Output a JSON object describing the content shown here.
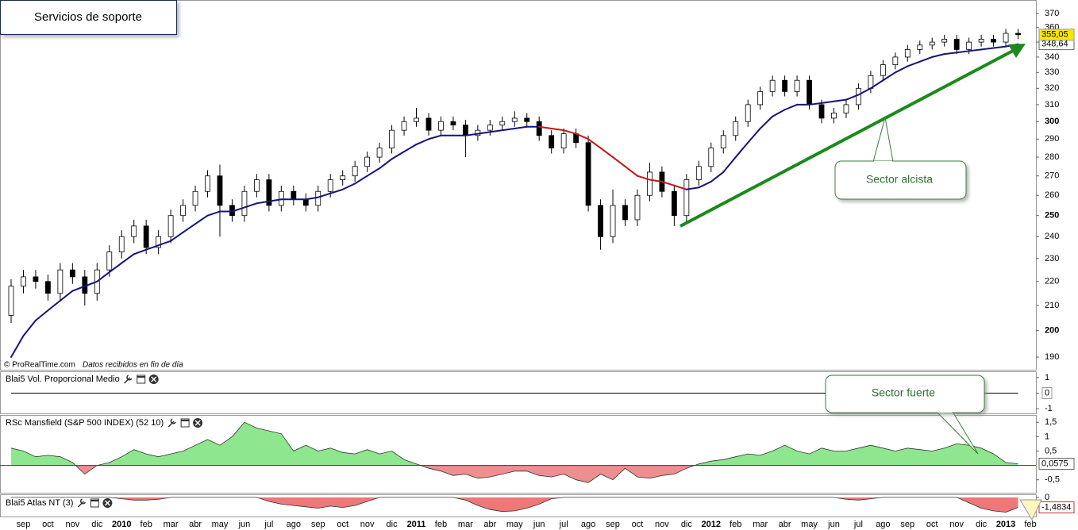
{
  "chart_data": [
    {
      "type": "candlestick",
      "title": "Servicios de soporte",
      "source": "© ProRealTime.com",
      "note": "Datos recibidos en fin de día",
      "annotations": [
        "Sector alcista",
        "Sector fuerte"
      ],
      "log": true,
      "grid": false,
      "up_color": "#ffffff",
      "down_color": "#000000",
      "ylim": [
        187.4,
        379.2
      ],
      "yticks": [
        190,
        200,
        210,
        220,
        230,
        240,
        250,
        260,
        270,
        280,
        290,
        300,
        310,
        320,
        330,
        340,
        350,
        360,
        370
      ],
      "categories": [
        null,
        "sep",
        null,
        "oct",
        null,
        "nov",
        null,
        "dic",
        null,
        "2010",
        null,
        "feb",
        null,
        "mar",
        null,
        "abr",
        null,
        "may",
        null,
        "jun",
        null,
        "jul",
        null,
        "ago",
        null,
        "sep",
        null,
        "oct",
        null,
        "nov",
        null,
        "dic",
        null,
        "2011",
        null,
        "feb",
        null,
        "mar",
        null,
        "abr",
        null,
        "may",
        null,
        "jun",
        null,
        "jul",
        null,
        "ago",
        null,
        "sep",
        null,
        "oct",
        null,
        "nov",
        null,
        "dic",
        null,
        "2012",
        null,
        "feb",
        null,
        "mar",
        null,
        "abr",
        null,
        "may",
        null,
        "jun",
        null,
        "jul",
        null,
        "ago",
        null,
        "sep",
        null,
        "oct",
        null,
        "nov",
        null,
        "dic",
        null,
        "2013",
        null,
        "feb"
      ],
      "open": [
        206,
        218,
        222,
        220,
        215,
        225,
        222,
        215,
        225,
        233,
        240,
        245,
        235,
        240,
        250,
        255,
        262,
        270,
        255,
        250,
        262,
        268,
        255,
        262,
        258,
        255,
        262,
        268,
        270,
        275,
        280,
        285,
        295,
        300,
        302,
        295,
        300,
        298,
        292,
        295,
        298,
        300,
        302,
        300,
        292,
        285,
        293,
        288,
        255,
        240,
        255,
        248,
        260,
        272,
        262,
        250,
        268,
        275,
        285,
        292,
        300,
        310,
        318,
        325,
        318,
        325,
        310,
        302,
        305,
        310,
        320,
        328,
        335,
        340,
        345,
        348,
        350,
        352,
        345,
        350,
        352,
        350,
        356,
        null
      ],
      "high": [
        221,
        225,
        225,
        223,
        228,
        228,
        225,
        228,
        236,
        243,
        248,
        248,
        243,
        253,
        258,
        265,
        273,
        276,
        258,
        265,
        271,
        271,
        265,
        265,
        261,
        265,
        271,
        273,
        278,
        283,
        288,
        298,
        303,
        308,
        305,
        303,
        303,
        301,
        298,
        301,
        303,
        306,
        305,
        303,
        295,
        296,
        296,
        292,
        258,
        263,
        258,
        263,
        277,
        275,
        265,
        271,
        278,
        288,
        295,
        303,
        313,
        321,
        328,
        328,
        328,
        328,
        313,
        308,
        313,
        323,
        331,
        338,
        343,
        348,
        351,
        353,
        355,
        355,
        353,
        355,
        355,
        359,
        359,
        null
      ],
      "low": [
        203,
        215,
        217,
        212,
        212,
        219,
        210,
        212,
        222,
        230,
        237,
        232,
        232,
        237,
        247,
        252,
        259,
        240,
        247,
        247,
        259,
        252,
        252,
        255,
        252,
        252,
        259,
        265,
        267,
        272,
        277,
        282,
        292,
        297,
        292,
        292,
        295,
        280,
        289,
        292,
        295,
        297,
        297,
        289,
        282,
        282,
        285,
        252,
        234,
        237,
        245,
        245,
        257,
        259,
        245,
        247,
        265,
        272,
        282,
        289,
        297,
        307,
        315,
        315,
        315,
        307,
        299,
        299,
        302,
        307,
        317,
        325,
        332,
        337,
        342,
        345,
        347,
        342,
        342,
        347,
        347,
        347,
        352,
        null
      ],
      "close": [
        218,
        222,
        220,
        215,
        225,
        222,
        215,
        225,
        233,
        240,
        245,
        235,
        240,
        250,
        255,
        262,
        270,
        255,
        250,
        262,
        268,
        255,
        262,
        258,
        255,
        262,
        268,
        270,
        275,
        280,
        285,
        295,
        300,
        302,
        295,
        300,
        298,
        292,
        295,
        298,
        300,
        302,
        300,
        292,
        285,
        293,
        288,
        255,
        240,
        255,
        248,
        260,
        272,
        262,
        250,
        268,
        275,
        285,
        292,
        300,
        310,
        318,
        325,
        318,
        325,
        310,
        302,
        305,
        310,
        320,
        328,
        335,
        340,
        345,
        348,
        350,
        352,
        345,
        350,
        352,
        350,
        356,
        355.05,
        null
      ],
      "close_labels": [
        null,
        null,
        null,
        null,
        null,
        null,
        null,
        null,
        null,
        null,
        null,
        null,
        null,
        null,
        null,
        null,
        null,
        null,
        null,
        null,
        null,
        null,
        null,
        null,
        null,
        null,
        null,
        null,
        null,
        null,
        null,
        null,
        null,
        null,
        null,
        null,
        null,
        null,
        null,
        null,
        null,
        null,
        null,
        null,
        null,
        null,
        null,
        null,
        null,
        null,
        null,
        null,
        null,
        null,
        null,
        null,
        null,
        null,
        null,
        null,
        null,
        null,
        null,
        null,
        null,
        null,
        null,
        null,
        null,
        null,
        null,
        null,
        null,
        null,
        null,
        null,
        null,
        null,
        null,
        null,
        null,
        null,
        "355,05",
        null
      ],
      "close_label_color": "#ffe600",
      "ma": {
        "color_up": "#14147a",
        "color_down": "#c81414",
        "values": [
          190,
          198,
          204,
          208,
          212,
          216,
          218,
          220,
          224,
          228,
          232,
          234,
          236,
          238,
          242,
          246,
          250,
          252,
          252,
          254,
          256,
          257,
          258,
          258,
          258,
          259,
          261,
          263,
          266,
          270,
          274,
          279,
          283,
          287,
          290,
          292,
          292,
          292,
          293,
          294,
          295,
          296,
          297,
          297,
          296,
          295,
          293,
          290,
          285,
          280,
          275,
          270,
          268,
          267,
          265,
          263,
          264,
          267,
          272,
          280,
          288,
          296,
          303,
          307,
          310,
          310,
          311,
          312,
          313,
          316,
          320,
          325,
          330,
          334,
          337,
          340,
          342,
          343,
          344,
          345,
          346,
          347,
          348.64,
          null
        ],
        "value_labels": [
          null,
          null,
          null,
          null,
          null,
          null,
          null,
          null,
          null,
          null,
          null,
          null,
          null,
          null,
          null,
          null,
          null,
          null,
          null,
          null,
          null,
          null,
          null,
          null,
          null,
          null,
          null,
          null,
          null,
          null,
          null,
          null,
          null,
          null,
          null,
          null,
          null,
          null,
          null,
          null,
          null,
          null,
          null,
          null,
          null,
          null,
          null,
          null,
          null,
          null,
          null,
          null,
          null,
          null,
          null,
          null,
          null,
          null,
          null,
          null,
          null,
          null,
          null,
          null,
          null,
          null,
          null,
          null,
          null,
          null,
          null,
          null,
          null,
          null,
          null,
          null,
          null,
          null,
          null,
          null,
          null,
          null,
          "348,64",
          null
        ]
      }
    },
    {
      "type": "line",
      "title": "Blai5 Vol. Proporcional Medio",
      "color": "#000000",
      "boxed_tick": 1,
      "ylim": [
        -1.3,
        1.3
      ],
      "yticks": [
        1,
        0,
        -1
      ],
      "values": [
        0,
        0,
        0,
        0,
        0,
        0,
        0,
        0,
        0,
        0,
        0,
        0,
        0,
        0,
        0,
        0,
        0,
        0,
        0,
        0,
        0,
        0,
        0,
        0,
        0,
        0,
        0,
        0,
        0,
        0,
        0,
        0,
        0,
        0,
        0,
        0,
        0,
        0,
        0,
        0,
        0,
        0,
        0,
        0,
        0,
        0,
        0,
        0,
        0,
        0,
        0,
        0,
        0,
        0,
        0,
        0,
        0,
        0,
        0,
        0,
        0,
        0,
        0,
        0,
        0,
        0,
        0,
        0,
        0,
        0,
        0,
        0,
        0,
        0,
        0,
        0,
        0,
        0,
        0,
        0,
        0,
        0,
        0,
        null
      ]
    },
    {
      "type": "area",
      "title": "RSc Mansfield (S&P 500 INDEX) (52 10)",
      "positive_color": "#8ee68e",
      "negative_color": "#ee8f8f",
      "baseline_color": "#2a2aa0",
      "ylim": [
        -0.95,
        1.7
      ],
      "yticks": [
        {
          "value": 1.5,
          "label": "1,5"
        },
        1,
        {
          "value": 0.5,
          "label": "0,5"
        },
        {
          "value": -0.5,
          "label": "-0,5"
        }
      ],
      "values": [
        0.6,
        0.5,
        0.3,
        0.35,
        0.3,
        0.1,
        -0.3,
        0,
        0.1,
        0.3,
        0.55,
        0.4,
        0.3,
        0.4,
        0.5,
        0.7,
        0.9,
        0.7,
        1.0,
        1.5,
        1.3,
        1.2,
        1.1,
        0.5,
        0.7,
        0.5,
        0.6,
        0.45,
        0.4,
        0.55,
        0.4,
        0.5,
        0.2,
        0.05,
        -0.1,
        -0.2,
        -0.35,
        -0.3,
        -0.45,
        -0.4,
        -0.3,
        -0.2,
        -0.2,
        -0.35,
        -0.4,
        -0.3,
        -0.5,
        -0.6,
        -0.3,
        -0.5,
        -0.1,
        -0.4,
        -0.45,
        -0.35,
        -0.3,
        -0.1,
        0.05,
        0.15,
        0.2,
        0.3,
        0.4,
        0.35,
        0.5,
        0.7,
        0.5,
        0.4,
        0.6,
        0.5,
        0.5,
        0.6,
        0.7,
        0.6,
        0.5,
        0.6,
        0.55,
        0.5,
        0.6,
        0.75,
        0.7,
        0.6,
        0.4,
        0.1,
        0.0575,
        null
      ],
      "value_labels": [
        null,
        null,
        null,
        null,
        null,
        null,
        null,
        null,
        null,
        null,
        null,
        null,
        null,
        null,
        null,
        null,
        null,
        null,
        null,
        null,
        null,
        null,
        null,
        null,
        null,
        null,
        null,
        null,
        null,
        null,
        null,
        null,
        null,
        null,
        null,
        null,
        null,
        null,
        null,
        null,
        null,
        null,
        null,
        null,
        null,
        null,
        null,
        null,
        null,
        null,
        null,
        null,
        null,
        null,
        null,
        null,
        null,
        null,
        null,
        null,
        null,
        null,
        null,
        null,
        null,
        null,
        null,
        null,
        null,
        null,
        null,
        null,
        null,
        null,
        null,
        null,
        null,
        null,
        null,
        null,
        null,
        null,
        "0,0575",
        null
      ]
    },
    {
      "type": "area",
      "title": "Blai5 Atlas NT (3)",
      "negative_color": "#ee7777",
      "ylim": [
        -2.6,
        0.1
      ],
      "yticks": [
        0
      ],
      "values": [
        0,
        0,
        0,
        0,
        0,
        0,
        0,
        0,
        0,
        -0.2,
        -0.4,
        -0.4,
        -0.3,
        0,
        0,
        0,
        0,
        0,
        0,
        0,
        0,
        -0.6,
        -1.0,
        -1.2,
        -1.4,
        -1.6,
        -1.3,
        -1.5,
        -1.2,
        -0.6,
        0,
        0,
        0,
        0,
        0,
        0,
        0,
        -0.4,
        -1.2,
        -1.8,
        -2.1,
        -2.0,
        -1.6,
        -1.0,
        -0.2,
        0,
        0,
        0,
        0,
        0,
        0,
        0,
        0,
        0,
        0,
        0,
        0,
        0,
        0,
        0,
        0,
        0,
        0,
        0,
        0,
        0,
        0,
        0,
        -0.3,
        -0.4,
        -0.2,
        0,
        0,
        0,
        0,
        0,
        0,
        0,
        -0.8,
        -1.6,
        -2.0,
        -2.2,
        -1.4834,
        null
      ],
      "value_labels": [
        null,
        null,
        null,
        null,
        null,
        null,
        null,
        null,
        null,
        null,
        null,
        null,
        null,
        null,
        null,
        null,
        null,
        null,
        null,
        null,
        null,
        null,
        null,
        null,
        null,
        null,
        null,
        null,
        null,
        null,
        null,
        null,
        null,
        null,
        null,
        null,
        null,
        null,
        null,
        null,
        null,
        null,
        null,
        null,
        null,
        null,
        null,
        null,
        null,
        null,
        null,
        null,
        null,
        null,
        null,
        null,
        null,
        null,
        null,
        null,
        null,
        null,
        null,
        null,
        null,
        null,
        null,
        null,
        null,
        null,
        null,
        null,
        null,
        null,
        null,
        null,
        null,
        null,
        null,
        null,
        null,
        null,
        "-1,4834",
        null
      ]
    }
  ]
}
